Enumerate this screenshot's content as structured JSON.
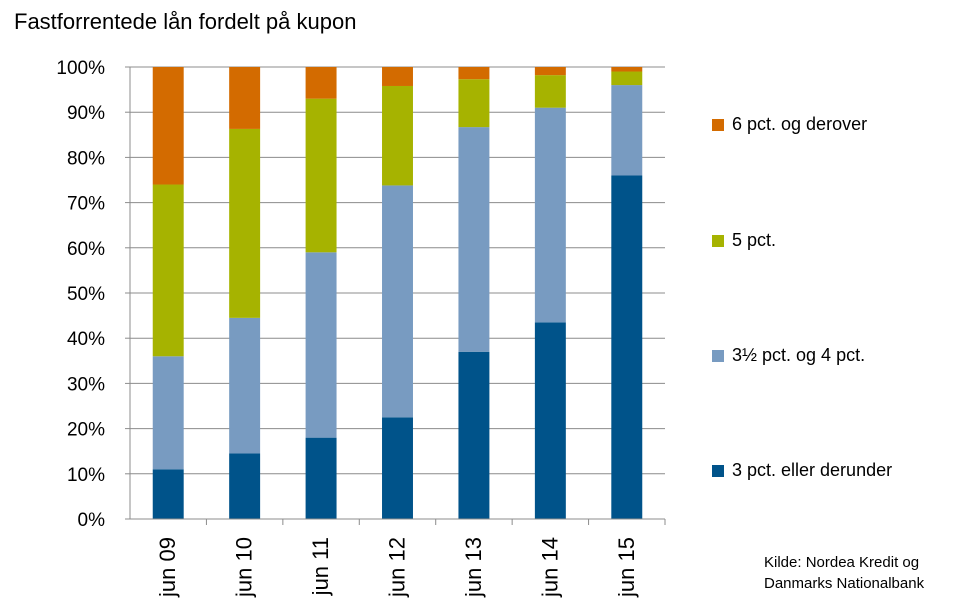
{
  "chart_data": {
    "type": "bar",
    "stacked": true,
    "title": "Fastforrentede lån fordelt på kupon",
    "categories": [
      "jun 09",
      "jun 10",
      "jun 11",
      "jun 12",
      "jun 13",
      "jun 14",
      "jun 15"
    ],
    "series": [
      {
        "name": "3 pct. eller derunder",
        "color": "#00538A",
        "values": [
          11,
          14.5,
          18,
          22.5,
          37,
          43.5,
          76
        ]
      },
      {
        "name": "3½ pct. og 4 pct.",
        "color": "#789BC1",
        "values": [
          25,
          30,
          41,
          51.3,
          49.7,
          47.5,
          20
        ]
      },
      {
        "name": "5 pct.",
        "color": "#A6B300",
        "values": [
          38,
          41.8,
          34,
          22,
          10.6,
          7.2,
          3
        ]
      },
      {
        "name": "6 pct. og derover",
        "color": "#D36B00",
        "values": [
          26,
          13.7,
          7,
          4.2,
          2.7,
          1.8,
          1
        ]
      }
    ],
    "yticks": [
      "0%",
      "10%",
      "20%",
      "30%",
      "40%",
      "50%",
      "60%",
      "70%",
      "80%",
      "90%",
      "100%"
    ],
    "ylim": [
      0,
      100
    ],
    "xlabel": "",
    "ylabel": "",
    "grid": true,
    "legend_position": "right",
    "legend_order": [
      "6 pct. og derover",
      "5 pct.",
      "3½ pct. og 4 pct.",
      "3 pct. eller derunder"
    ]
  },
  "source": {
    "line1": "Kilde: Nordea Kredit og",
    "line2": "Danmarks Nationalbank"
  }
}
